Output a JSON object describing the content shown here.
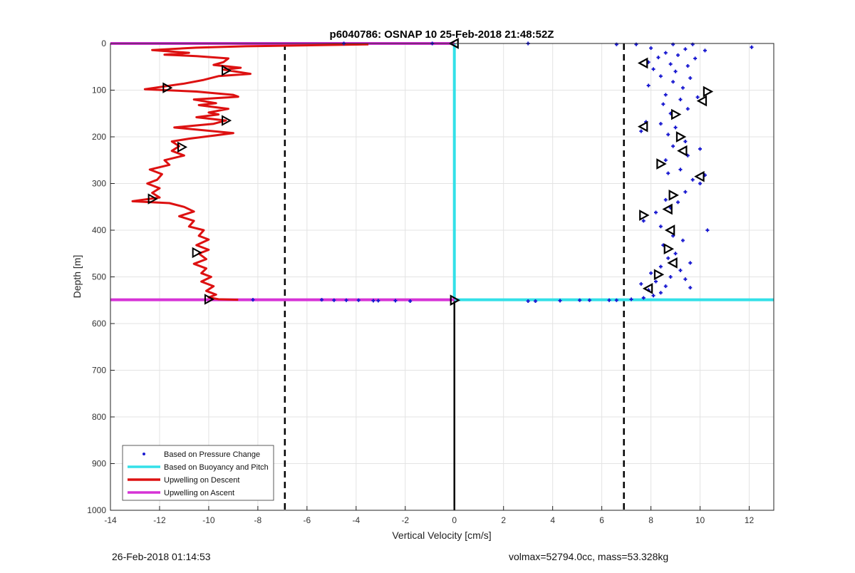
{
  "footer": {
    "timestamp": "26-Feb-2018 01:14:53",
    "summary": "volmax=52794.0cc, mass=53.328kg"
  },
  "chart_data": {
    "type": "scatter",
    "title": "p6040786: OSNAP 10 25-Feb-2018 21:48:52Z",
    "xlabel": "Vertical Velocity [cm/s]",
    "ylabel": "Depth [m]",
    "xlim": [
      -14,
      13
    ],
    "ylim": [
      0,
      1000
    ],
    "y_reversed": true,
    "grid": true,
    "xticks": [
      -14,
      -12,
      -10,
      -8,
      -6,
      -4,
      -2,
      0,
      2,
      4,
      6,
      8,
      10,
      12
    ],
    "yticks": [
      0,
      100,
      200,
      300,
      400,
      500,
      600,
      700,
      800,
      900,
      1000
    ],
    "legend": {
      "position": "bottom-left",
      "entries": [
        {
          "label": "Based on Pressure Change",
          "color": "#1a1ad0",
          "style": "dot"
        },
        {
          "label": "Based on Buoyancy and Pitch",
          "color": "#33e0e8",
          "style": "line"
        },
        {
          "label": "Upwelling on Descent",
          "color": "#dd1111",
          "style": "line"
        },
        {
          "label": "Upwelling on Ascent",
          "color": "#d633d6",
          "style": "line"
        }
      ]
    },
    "reference_lines": {
      "dashed_x": [
        -6.9,
        6.9
      ],
      "solid_x": 0,
      "solid_depth_range": [
        550,
        1000
      ],
      "color": "#000000"
    },
    "series": [
      {
        "name": "Based on Pressure Change",
        "color": "#1a1ad0",
        "points": [
          [
            -4.5,
            0
          ],
          [
            -0.9,
            0
          ],
          [
            3.0,
            0
          ],
          [
            6.6,
            2
          ],
          [
            7.4,
            2
          ],
          [
            12.1,
            8
          ],
          [
            8.9,
            2
          ],
          [
            9.7,
            2
          ],
          [
            8.0,
            10
          ],
          [
            9.4,
            12
          ],
          [
            10.2,
            15
          ],
          [
            8.6,
            20
          ],
          [
            9.1,
            25
          ],
          [
            8.3,
            30
          ],
          [
            9.8,
            32
          ],
          [
            7.9,
            40
          ],
          [
            8.8,
            44
          ],
          [
            9.5,
            48
          ],
          [
            8.1,
            55
          ],
          [
            9.0,
            60
          ],
          [
            8.4,
            70
          ],
          [
            9.6,
            74
          ],
          [
            8.9,
            82
          ],
          [
            7.9,
            90
          ],
          [
            9.3,
            95
          ],
          [
            8.6,
            110
          ],
          [
            9.9,
            115
          ],
          [
            9.2,
            120
          ],
          [
            8.5,
            130
          ],
          [
            9.5,
            140
          ],
          [
            8.8,
            150
          ],
          [
            7.8,
            168
          ],
          [
            8.4,
            172
          ],
          [
            9.0,
            180
          ],
          [
            7.6,
            188
          ],
          [
            8.7,
            195
          ],
          [
            9.4,
            210
          ],
          [
            8.9,
            220
          ],
          [
            10.0,
            226
          ],
          [
            9.5,
            240
          ],
          [
            8.6,
            250
          ],
          [
            9.2,
            270
          ],
          [
            8.7,
            278
          ],
          [
            10.2,
            282
          ],
          [
            9.7,
            292
          ],
          [
            10.0,
            300
          ],
          [
            9.4,
            318
          ],
          [
            8.6,
            335
          ],
          [
            9.1,
            340
          ],
          [
            8.8,
            352
          ],
          [
            8.2,
            362
          ],
          [
            7.7,
            380
          ],
          [
            8.4,
            392
          ],
          [
            10.3,
            400
          ],
          [
            8.9,
            412
          ],
          [
            9.3,
            422
          ],
          [
            8.5,
            432
          ],
          [
            9.0,
            450
          ],
          [
            8.7,
            460
          ],
          [
            9.6,
            470
          ],
          [
            8.4,
            478
          ],
          [
            9.2,
            486
          ],
          [
            8.0,
            492
          ],
          [
            8.8,
            500
          ],
          [
            9.4,
            505
          ],
          [
            8.2,
            510
          ],
          [
            7.6,
            515
          ],
          [
            8.6,
            520
          ],
          [
            9.6,
            523
          ],
          [
            7.9,
            528
          ],
          [
            8.4,
            534
          ],
          [
            8.1,
            540
          ],
          [
            7.7,
            545
          ],
          [
            7.2,
            548
          ],
          [
            6.6,
            550
          ],
          [
            6.3,
            550
          ],
          [
            5.5,
            550
          ],
          [
            5.1,
            550
          ],
          [
            4.3,
            551
          ],
          [
            3.3,
            552
          ],
          [
            3.0,
            552
          ],
          [
            -8.2,
            549
          ],
          [
            -5.4,
            549
          ],
          [
            -4.9,
            550
          ],
          [
            -4.4,
            550
          ],
          [
            -3.9,
            550
          ],
          [
            -3.3,
            551
          ],
          [
            -3.1,
            551
          ],
          [
            -2.4,
            551
          ],
          [
            -1.8,
            552
          ]
        ]
      },
      {
        "name": "Based on Buoyancy and Pitch",
        "color": "#33e0e8",
        "segments": [
          [
            [
              0,
              0
            ],
            [
              0,
              550
            ]
          ],
          [
            [
              0,
              549
            ],
            [
              13,
              549
            ]
          ]
        ]
      },
      {
        "name": "Upwelling on Descent",
        "color": "#dd1111",
        "line": [
          [
            -3.5,
            2
          ],
          [
            -8.5,
            6
          ],
          [
            -10.5,
            9
          ],
          [
            -12.3,
            14
          ],
          [
            -10.8,
            20
          ],
          [
            -11.8,
            24
          ],
          [
            -10.5,
            27
          ],
          [
            -9.2,
            32
          ],
          [
            -9.4,
            40
          ],
          [
            -9.8,
            46
          ],
          [
            -8.7,
            52
          ],
          [
            -9.4,
            56
          ],
          [
            -8.3,
            65
          ],
          [
            -9.6,
            70
          ],
          [
            -10.2,
            78
          ],
          [
            -11.0,
            86
          ],
          [
            -12.6,
            98
          ],
          [
            -10.5,
            103
          ],
          [
            -9.0,
            110
          ],
          [
            -8.8,
            114
          ],
          [
            -10.6,
            120
          ],
          [
            -9.7,
            128
          ],
          [
            -10.4,
            132
          ],
          [
            -9.2,
            140
          ],
          [
            -10.0,
            148
          ],
          [
            -9.6,
            152
          ],
          [
            -10.5,
            158
          ],
          [
            -9.3,
            165
          ],
          [
            -9.8,
            172
          ],
          [
            -11.4,
            180
          ],
          [
            -9.0,
            192
          ],
          [
            -10.8,
            204
          ],
          [
            -11.5,
            210
          ],
          [
            -11.2,
            220
          ],
          [
            -11.5,
            230
          ],
          [
            -11.0,
            240
          ],
          [
            -11.8,
            250
          ],
          [
            -11.6,
            260
          ],
          [
            -12.4,
            270
          ],
          [
            -11.9,
            280
          ],
          [
            -12.1,
            292
          ],
          [
            -12.5,
            300
          ],
          [
            -12.0,
            310
          ],
          [
            -12.3,
            320
          ],
          [
            -12.0,
            330
          ],
          [
            -13.1,
            338
          ],
          [
            -11.6,
            342
          ],
          [
            -11.0,
            350
          ],
          [
            -10.6,
            360
          ],
          [
            -11.2,
            370
          ],
          [
            -10.6,
            380
          ],
          [
            -10.8,
            392
          ],
          [
            -10.2,
            400
          ],
          [
            -10.4,
            412
          ],
          [
            -10.0,
            420
          ],
          [
            -10.5,
            432
          ],
          [
            -10.0,
            442
          ],
          [
            -10.4,
            450
          ],
          [
            -10.1,
            462
          ],
          [
            -10.6,
            472
          ],
          [
            -10.1,
            482
          ],
          [
            -10.3,
            492
          ],
          [
            -9.9,
            500
          ],
          [
            -10.3,
            510
          ],
          [
            -9.8,
            520
          ],
          [
            -10.1,
            530
          ],
          [
            -9.7,
            538
          ],
          [
            -10.0,
            544
          ],
          [
            -9.6,
            548
          ],
          [
            -8.8,
            549
          ]
        ],
        "markers": [
          [
            -9.3,
            58
          ],
          [
            -11.7,
            95
          ],
          [
            -9.3,
            165
          ],
          [
            -11.1,
            222
          ],
          [
            -12.3,
            333
          ],
          [
            -10.5,
            448
          ],
          [
            -10.0,
            548
          ]
        ]
      },
      {
        "name": "Upwelling on Ascent",
        "color": "#d633d6",
        "segments": [
          [
            [
              -14,
              0
            ],
            [
              0,
              0
            ]
          ],
          [
            [
              -14,
              549
            ],
            [
              0,
              549
            ]
          ]
        ]
      }
    ],
    "triangle_markers": [
      [
        0,
        0
      ],
      [
        0,
        550
      ],
      [
        7.7,
        42
      ],
      [
        10.3,
        103
      ],
      [
        10.1,
        123
      ],
      [
        9.0,
        152
      ],
      [
        7.7,
        178
      ],
      [
        9.2,
        200
      ],
      [
        9.3,
        230
      ],
      [
        8.4,
        258
      ],
      [
        10.0,
        285
      ],
      [
        8.9,
        325
      ],
      [
        8.7,
        355
      ],
      [
        7.7,
        368
      ],
      [
        8.8,
        400
      ],
      [
        8.7,
        440
      ],
      [
        8.9,
        470
      ],
      [
        8.3,
        495
      ],
      [
        7.9,
        525
      ]
    ]
  }
}
